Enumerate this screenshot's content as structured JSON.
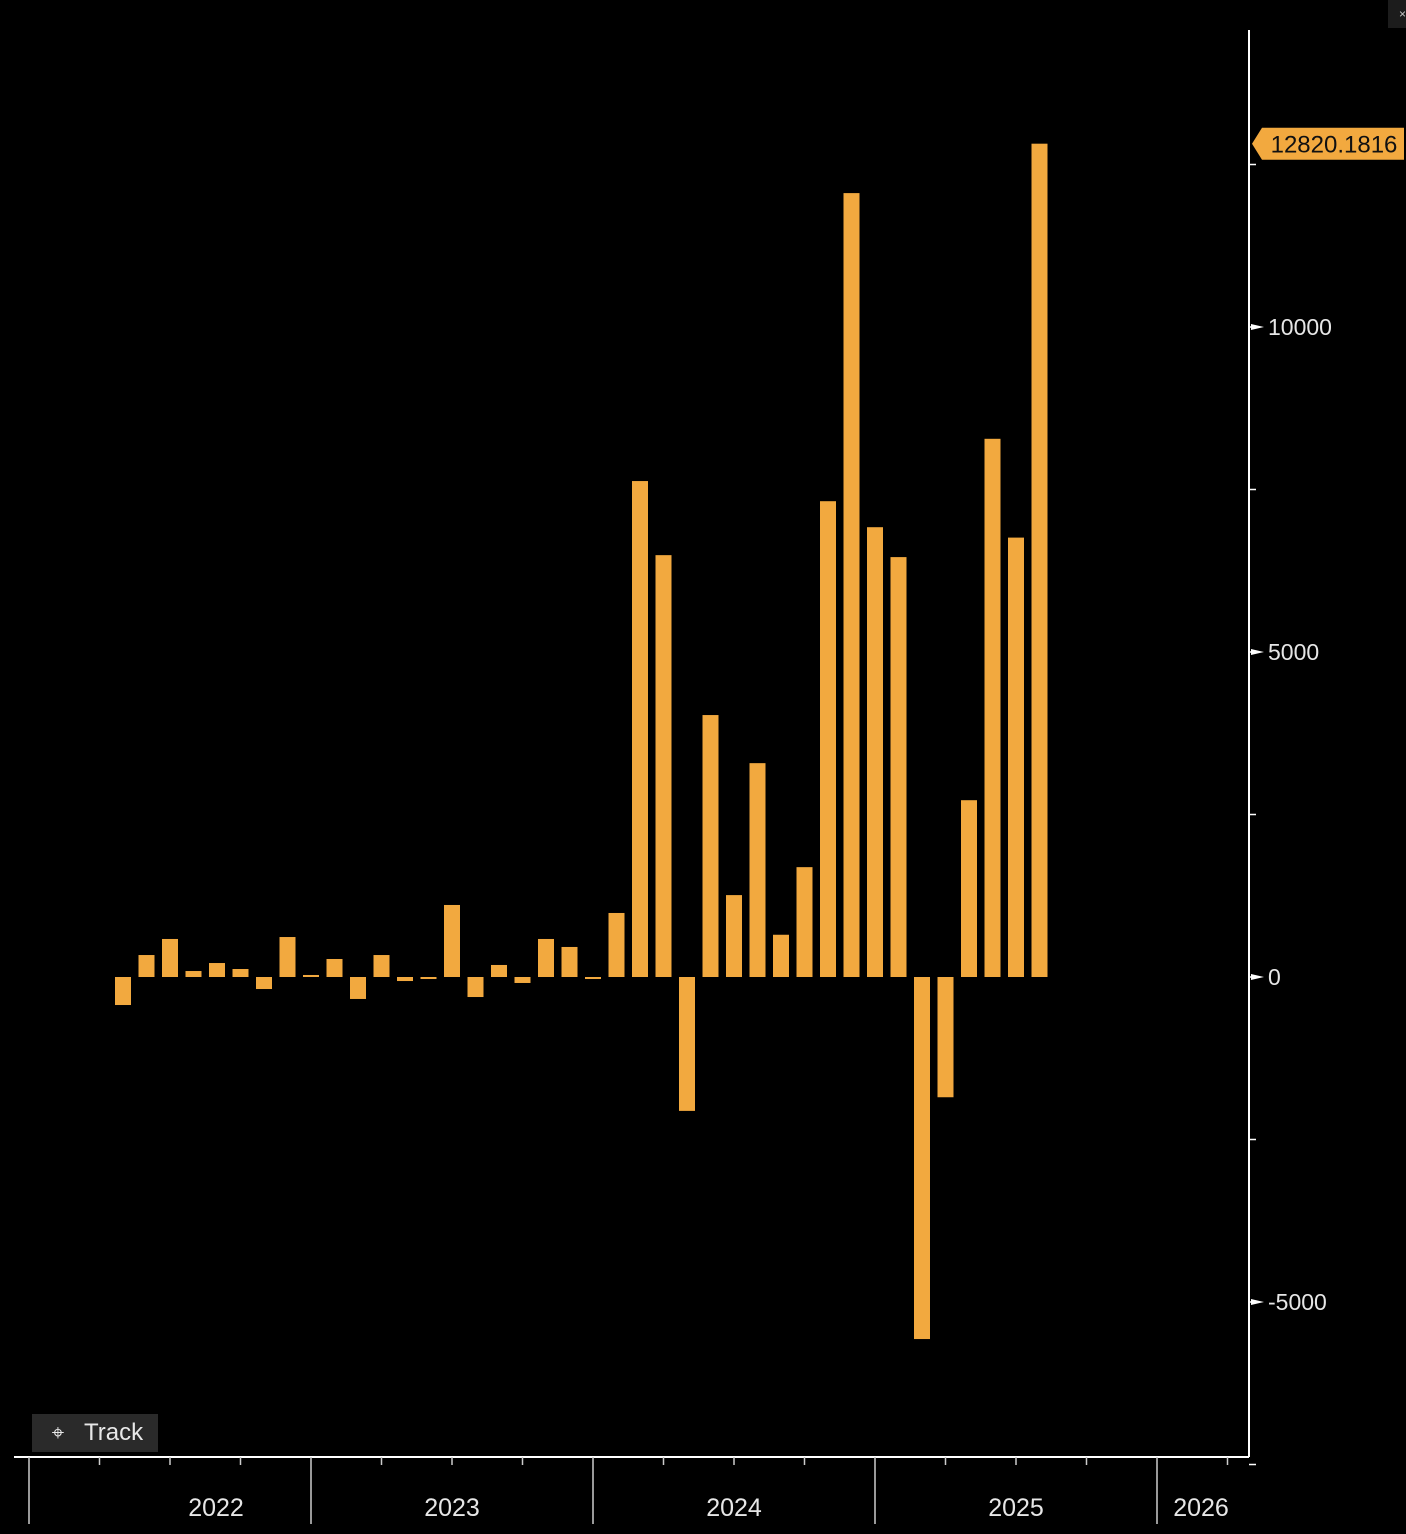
{
  "chart_data": {
    "type": "bar",
    "title": "",
    "xlabel": "",
    "ylabel": "",
    "x": [
      "2022-05",
      "2022-06",
      "2022-07",
      "2022-08",
      "2022-09",
      "2022-10",
      "2022-11",
      "2022-12",
      "2023-01",
      "2023-02",
      "2023-03",
      "2023-04",
      "2023-05",
      "2023-06",
      "2023-07",
      "2023-08",
      "2023-09",
      "2023-10",
      "2023-11",
      "2023-12",
      "2024-01",
      "2024-02",
      "2024-03",
      "2024-04",
      "2024-05",
      "2024-06",
      "2024-07",
      "2024-08",
      "2024-09",
      "2024-10",
      "2024-11",
      "2024-12",
      "2025-01",
      "2025-02",
      "2025-03",
      "2025-04",
      "2025-05",
      "2025-06",
      "2025-07",
      "2025-08"
    ],
    "values": [
      -431,
      338,
      585,
      92,
      215,
      123,
      -185,
      615,
      31,
      277,
      -338,
      338,
      -62,
      -31,
      1108,
      -308,
      185,
      -92,
      585,
      462,
      -31,
      985,
      7630,
      6490,
      -2060,
      4030,
      1260,
      3290,
      650,
      1690,
      7320,
      12060,
      6920,
      6460,
      -5570,
      -1850,
      2720,
      8280,
      6760,
      12820.1816
    ],
    "ylim": [
      -7400,
      14600
    ],
    "yticks": [
      -5000,
      0,
      5000,
      10000
    ],
    "ytick_labels": [
      "-5000",
      "0",
      "5000",
      "10000"
    ],
    "xtick_labels": [
      "2022",
      "2023",
      "2024",
      "2025",
      "2026"
    ],
    "last_value_label": "12820.1816",
    "grid": false,
    "bar_color": "#f2a93f",
    "background": "#000000"
  },
  "ui": {
    "track_label": "Track",
    "track_icon": "crosshair-icon",
    "close_label": "×"
  }
}
